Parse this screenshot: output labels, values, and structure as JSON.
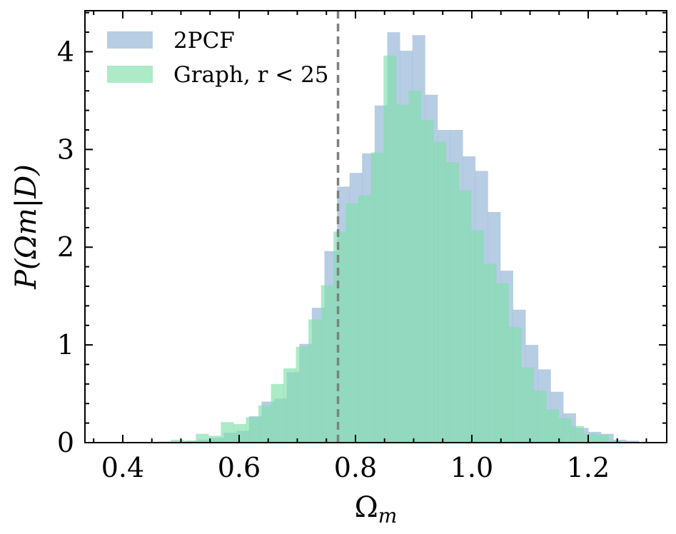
{
  "chart_data": {
    "type": "histogram",
    "xlabel_base": "Ω",
    "xlabel_sub": "m",
    "ylabel": "P(Ωm|D)",
    "xlim": [
      0.335,
      1.335
    ],
    "ylim": [
      0,
      4.42
    ],
    "x_ticks": [
      0.4,
      0.6,
      0.8,
      1.0,
      1.2
    ],
    "x_tick_labels": [
      "0.4",
      "0.6",
      "0.8",
      "1.0",
      "1.2"
    ],
    "y_ticks": [
      0,
      1,
      2,
      3,
      4
    ],
    "y_tick_labels": [
      "0",
      "1",
      "2",
      "3",
      "4"
    ],
    "x_minor_step": 0.05,
    "y_minor_step": 0.2,
    "reference_line": {
      "x": 0.77,
      "style": "dashed",
      "color": "#808080"
    },
    "series": [
      {
        "name": "2PCF",
        "color": "#8fb2d6",
        "bin_edges": [
          0.4658,
          0.4874,
          0.509,
          0.5306,
          0.5522,
          0.5738,
          0.5954,
          0.617,
          0.6386,
          0.6602,
          0.6818,
          0.7034,
          0.725,
          0.7466,
          0.7682,
          0.7898,
          0.8114,
          0.833,
          0.8546,
          0.8762,
          0.8978,
          0.9194,
          0.941,
          0.9626,
          0.9842,
          1.0058,
          1.0274,
          1.049,
          1.0706,
          1.0922,
          1.1138,
          1.1354,
          1.157,
          1.1786,
          1.2002,
          1.2218,
          1.2434,
          1.265,
          1.2866
        ],
        "values": [
          0.01,
          0.01,
          0.02,
          0.03,
          0.05,
          0.1,
          0.12,
          0.27,
          0.42,
          0.45,
          0.72,
          1.01,
          1.38,
          1.96,
          2.62,
          2.76,
          2.96,
          3.45,
          4.2,
          4.01,
          4.17,
          3.56,
          3.2,
          3.2,
          2.93,
          2.78,
          2.36,
          1.76,
          1.36,
          1.0,
          0.75,
          0.52,
          0.3,
          0.15,
          0.11,
          0.09,
          0.03,
          0.02,
          0.02
        ]
      },
      {
        "name": "Graph, r < 25",
        "color": "#80deaa",
        "bin_edges": [
          0.4612,
          0.4827,
          0.5042,
          0.5257,
          0.5472,
          0.5687,
          0.5902,
          0.6117,
          0.6332,
          0.6547,
          0.6762,
          0.6977,
          0.7192,
          0.7407,
          0.7622,
          0.7837,
          0.8052,
          0.8267,
          0.8482,
          0.8697,
          0.8912,
          0.9127,
          0.9342,
          0.9557,
          0.9772,
          0.9987,
          1.0202,
          1.0417,
          1.0632,
          1.0847,
          1.1062,
          1.1277,
          1.1492,
          1.1707,
          1.1922,
          1.2137,
          1.2352,
          1.2567
        ],
        "values": [
          0.01,
          0.03,
          0.02,
          0.09,
          0.07,
          0.21,
          0.19,
          0.26,
          0.38,
          0.6,
          0.76,
          0.98,
          1.26,
          1.61,
          2.16,
          2.45,
          2.53,
          2.97,
          3.96,
          3.46,
          3.6,
          3.3,
          3.08,
          2.87,
          2.58,
          2.17,
          1.83,
          1.63,
          1.18,
          0.77,
          0.53,
          0.34,
          0.25,
          0.17,
          0.09,
          0.08,
          0.02,
          0.01
        ]
      }
    ],
    "legend": {
      "placement": "top-left",
      "entries": [
        "2PCF",
        "Graph, r < 25"
      ]
    }
  }
}
